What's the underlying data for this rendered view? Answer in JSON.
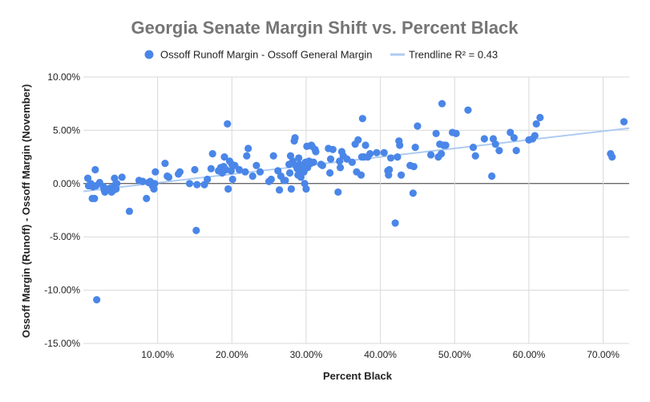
{
  "chart_data": {
    "type": "scatter",
    "title": "Georgia Senate Margin Shift vs. Percent Black",
    "xlabel": "Percent Black",
    "ylabel": "Ossoff Margin (Runoff) - Ossoff Margin (November)",
    "xlim": [
      0.0,
      0.735
    ],
    "ylim": [
      -0.15,
      0.1
    ],
    "x_ticks": [
      0.1,
      0.2,
      0.3,
      0.4,
      0.5,
      0.6,
      0.7
    ],
    "x_tick_labels": [
      "10.00%",
      "20.00%",
      "30.00%",
      "40.00%",
      "50.00%",
      "60.00%",
      "70.00%"
    ],
    "y_ticks": [
      0.1,
      0.05,
      0.0,
      -0.05,
      -0.1,
      -0.15
    ],
    "y_tick_labels": [
      "10.00%",
      "5.00%",
      "0.00%",
      "-5.00%",
      "-10.00%",
      "-15.00%"
    ],
    "legend_position": "top",
    "grid": true,
    "colors": {
      "points": "#4a86e8",
      "trendline": "#aecbf2",
      "grid": "#d9d9d9",
      "zero_line": "#333333",
      "title": "#757575"
    },
    "series": [
      {
        "name": "Ossoff Runoff Margin - Ossoff General Margin",
        "kind": "scatter",
        "points": [
          [
            0.006,
            0.005
          ],
          [
            0.007,
            -0.002
          ],
          [
            0.01,
            0.0
          ],
          [
            0.012,
            -0.014
          ],
          [
            0.013,
            -0.003
          ],
          [
            0.015,
            -0.014
          ],
          [
            0.016,
            0.013
          ],
          [
            0.017,
            -0.002
          ],
          [
            0.018,
            -0.109
          ],
          [
            0.022,
            0.001
          ],
          [
            0.027,
            -0.003
          ],
          [
            0.028,
            -0.006
          ],
          [
            0.029,
            -0.008
          ],
          [
            0.033,
            -0.005
          ],
          [
            0.037,
            -0.004
          ],
          [
            0.038,
            -0.008
          ],
          [
            0.041,
            -0.006
          ],
          [
            0.042,
            0.005
          ],
          [
            0.043,
            -0.001
          ],
          [
            0.044,
            -0.005
          ],
          [
            0.045,
            0.0
          ],
          [
            0.052,
            0.006
          ],
          [
            0.062,
            -0.026
          ],
          [
            0.075,
            0.003
          ],
          [
            0.08,
            0.002
          ],
          [
            0.085,
            -0.014
          ],
          [
            0.088,
            0.001
          ],
          [
            0.09,
            0.002
          ],
          [
            0.093,
            -0.002
          ],
          [
            0.095,
            -0.005
          ],
          [
            0.096,
            0.0
          ],
          [
            0.097,
            0.011
          ],
          [
            0.11,
            0.019
          ],
          [
            0.113,
            0.007
          ],
          [
            0.115,
            0.006
          ],
          [
            0.128,
            0.009
          ],
          [
            0.13,
            0.011
          ],
          [
            0.143,
            0.0
          ],
          [
            0.15,
            0.013
          ],
          [
            0.152,
            -0.044
          ],
          [
            0.153,
            -0.001
          ],
          [
            0.163,
            -0.001
          ],
          [
            0.167,
            0.004
          ],
          [
            0.172,
            0.014
          ],
          [
            0.174,
            0.028
          ],
          [
            0.182,
            0.012
          ],
          [
            0.185,
            0.015
          ],
          [
            0.187,
            0.01
          ],
          [
            0.189,
            0.016
          ],
          [
            0.19,
            0.025
          ],
          [
            0.192,
            0.013
          ],
          [
            0.194,
            0.056
          ],
          [
            0.195,
            -0.005
          ],
          [
            0.197,
            0.021
          ],
          [
            0.199,
            0.012
          ],
          [
            0.2,
            0.018
          ],
          [
            0.201,
            0.004
          ],
          [
            0.204,
            0.017
          ],
          [
            0.21,
            0.013
          ],
          [
            0.218,
            0.011
          ],
          [
            0.22,
            0.026
          ],
          [
            0.222,
            0.033
          ],
          [
            0.228,
            0.007
          ],
          [
            0.233,
            0.017
          ],
          [
            0.238,
            0.011
          ],
          [
            0.25,
            0.002
          ],
          [
            0.253,
            0.004
          ],
          [
            0.256,
            0.026
          ],
          [
            0.262,
            0.012
          ],
          [
            0.264,
            -0.006
          ],
          [
            0.266,
            0.007
          ],
          [
            0.27,
            0.003
          ],
          [
            0.272,
            0.003
          ],
          [
            0.277,
            0.018
          ],
          [
            0.278,
            0.01
          ],
          [
            0.279,
            0.026
          ],
          [
            0.28,
            -0.005
          ],
          [
            0.282,
            0.021
          ],
          [
            0.284,
            0.04
          ],
          [
            0.285,
            0.043
          ],
          [
            0.286,
            0.017
          ],
          [
            0.288,
            0.014
          ],
          [
            0.289,
            0.008
          ],
          [
            0.29,
            0.024
          ],
          [
            0.291,
            0.018
          ],
          [
            0.292,
            0.01
          ],
          [
            0.293,
            0.006
          ],
          [
            0.295,
            0.015
          ],
          [
            0.297,
            0.011
          ],
          [
            0.298,
            0.0
          ],
          [
            0.299,
            0.02
          ],
          [
            0.3,
            -0.005
          ],
          [
            0.301,
            0.035
          ],
          [
            0.302,
            0.015
          ],
          [
            0.304,
            0.021
          ],
          [
            0.306,
            0.019
          ],
          [
            0.307,
            0.036
          ],
          [
            0.308,
            0.035
          ],
          [
            0.31,
            0.02
          ],
          [
            0.312,
            0.032
          ],
          [
            0.313,
            0.03
          ],
          [
            0.32,
            0.018
          ],
          [
            0.322,
            0.017
          ],
          [
            0.33,
            0.033
          ],
          [
            0.332,
            0.01
          ],
          [
            0.333,
            0.023
          ],
          [
            0.336,
            0.032
          ],
          [
            0.343,
            -0.008
          ],
          [
            0.345,
            0.021
          ],
          [
            0.346,
            0.015
          ],
          [
            0.348,
            0.03
          ],
          [
            0.35,
            0.026
          ],
          [
            0.355,
            0.023
          ],
          [
            0.362,
            0.02
          ],
          [
            0.366,
            0.037
          ],
          [
            0.368,
            0.011
          ],
          [
            0.37,
            0.041
          ],
          [
            0.374,
            0.008
          ],
          [
            0.375,
            0.025
          ],
          [
            0.376,
            0.061
          ],
          [
            0.378,
            0.025
          ],
          [
            0.38,
            0.036
          ],
          [
            0.383,
            0.025
          ],
          [
            0.386,
            0.028
          ],
          [
            0.395,
            0.029
          ],
          [
            0.405,
            0.029
          ],
          [
            0.41,
            0.012
          ],
          [
            0.411,
            0.008
          ],
          [
            0.412,
            0.013
          ],
          [
            0.414,
            0.024
          ],
          [
            0.42,
            -0.037
          ],
          [
            0.423,
            0.025
          ],
          [
            0.425,
            0.04
          ],
          [
            0.426,
            0.036
          ],
          [
            0.428,
            0.008
          ],
          [
            0.44,
            0.017
          ],
          [
            0.444,
            -0.009
          ],
          [
            0.445,
            0.016
          ],
          [
            0.447,
            0.034
          ],
          [
            0.45,
            0.054
          ],
          [
            0.468,
            0.027
          ],
          [
            0.475,
            0.047
          ],
          [
            0.478,
            0.025
          ],
          [
            0.48,
            0.037
          ],
          [
            0.482,
            0.028
          ],
          [
            0.483,
            0.075
          ],
          [
            0.485,
            0.036
          ],
          [
            0.488,
            0.036
          ],
          [
            0.497,
            0.048
          ],
          [
            0.502,
            0.047
          ],
          [
            0.518,
            0.069
          ],
          [
            0.525,
            0.034
          ],
          [
            0.528,
            0.026
          ],
          [
            0.54,
            0.042
          ],
          [
            0.55,
            0.007
          ],
          [
            0.552,
            0.042
          ],
          [
            0.555,
            0.037
          ],
          [
            0.56,
            0.031
          ],
          [
            0.575,
            0.048
          ],
          [
            0.58,
            0.043
          ],
          [
            0.583,
            0.031
          ],
          [
            0.6,
            0.041
          ],
          [
            0.605,
            0.042
          ],
          [
            0.608,
            0.045
          ],
          [
            0.61,
            0.056
          ],
          [
            0.615,
            0.062
          ],
          [
            0.71,
            0.028
          ],
          [
            0.712,
            0.025
          ],
          [
            0.728,
            0.058
          ]
        ]
      },
      {
        "name": "Trendline R² = 0.43",
        "kind": "trendline",
        "slope": 0.0807,
        "intercept": -0.0073
      }
    ]
  }
}
